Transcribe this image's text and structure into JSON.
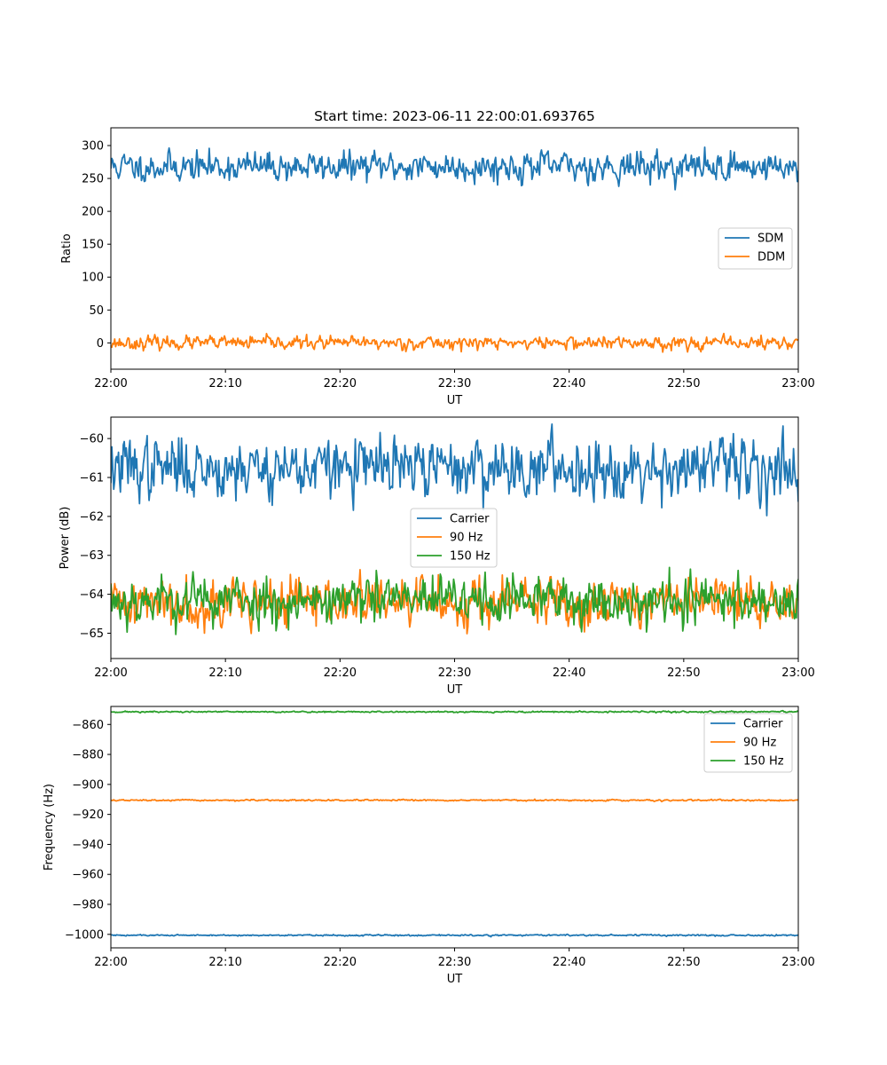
{
  "figure": {
    "title": "Start time: 2023-06-11 22:00:01.693765"
  },
  "chart_data": [
    {
      "type": "line",
      "xlabel": "UT",
      "ylabel": "Ratio",
      "x_ticks": [
        "22:00",
        "22:10",
        "22:20",
        "22:30",
        "22:40",
        "22:50",
        "23:00"
      ],
      "x_range_minutes": [
        0,
        60
      ],
      "y_ticks": [
        0,
        50,
        100,
        150,
        200,
        250,
        300
      ],
      "ylim": [
        -40,
        327
      ],
      "legend_position": "center-right",
      "series": [
        {
          "name": "SDM",
          "color": "#1f77b4",
          "mean": 268,
          "noise": 16,
          "seed": 11
        },
        {
          "name": "DDM",
          "color": "#ff7f0e",
          "mean": 0,
          "noise": 7,
          "seed": 23
        }
      ]
    },
    {
      "type": "line",
      "xlabel": "UT",
      "ylabel": "Power (dB)",
      "x_ticks": [
        "22:00",
        "22:10",
        "22:20",
        "22:30",
        "22:40",
        "22:50",
        "23:00"
      ],
      "x_range_minutes": [
        0,
        60
      ],
      "y_ticks": [
        -65,
        -64,
        -63,
        -62,
        -61,
        -60
      ],
      "ylim": [
        -65.65,
        -59.45
      ],
      "legend_position": "center",
      "series": [
        {
          "name": "Carrier",
          "color": "#1f77b4",
          "mean": -60.75,
          "noise": 0.55,
          "seed": 37
        },
        {
          "name": "90 Hz",
          "color": "#ff7f0e",
          "mean": -64.2,
          "noise": 0.45,
          "seed": 41
        },
        {
          "name": "150 Hz",
          "color": "#2ca02c",
          "mean": -64.15,
          "noise": 0.45,
          "seed": 53
        }
      ]
    },
    {
      "type": "line",
      "xlabel": "UT",
      "ylabel": "Frequency (Hz)",
      "x_ticks": [
        "22:00",
        "22:10",
        "22:20",
        "22:30",
        "22:40",
        "22:50",
        "23:00"
      ],
      "x_range_minutes": [
        0,
        60
      ],
      "y_ticks": [
        -1000,
        -980,
        -960,
        -940,
        -920,
        -900,
        -880,
        -860
      ],
      "ylim": [
        -1009,
        -848
      ],
      "legend_position": "upper right",
      "series": [
        {
          "name": "Carrier",
          "color": "#1f77b4",
          "mean": -1000.6,
          "noise": 0.35,
          "seed": 61
        },
        {
          "name": "90 Hz",
          "color": "#ff7f0e",
          "mean": -910.6,
          "noise": 0.35,
          "seed": 67
        },
        {
          "name": "150 Hz",
          "color": "#2ca02c",
          "mean": -851.6,
          "noise": 0.35,
          "seed": 71
        }
      ]
    }
  ]
}
